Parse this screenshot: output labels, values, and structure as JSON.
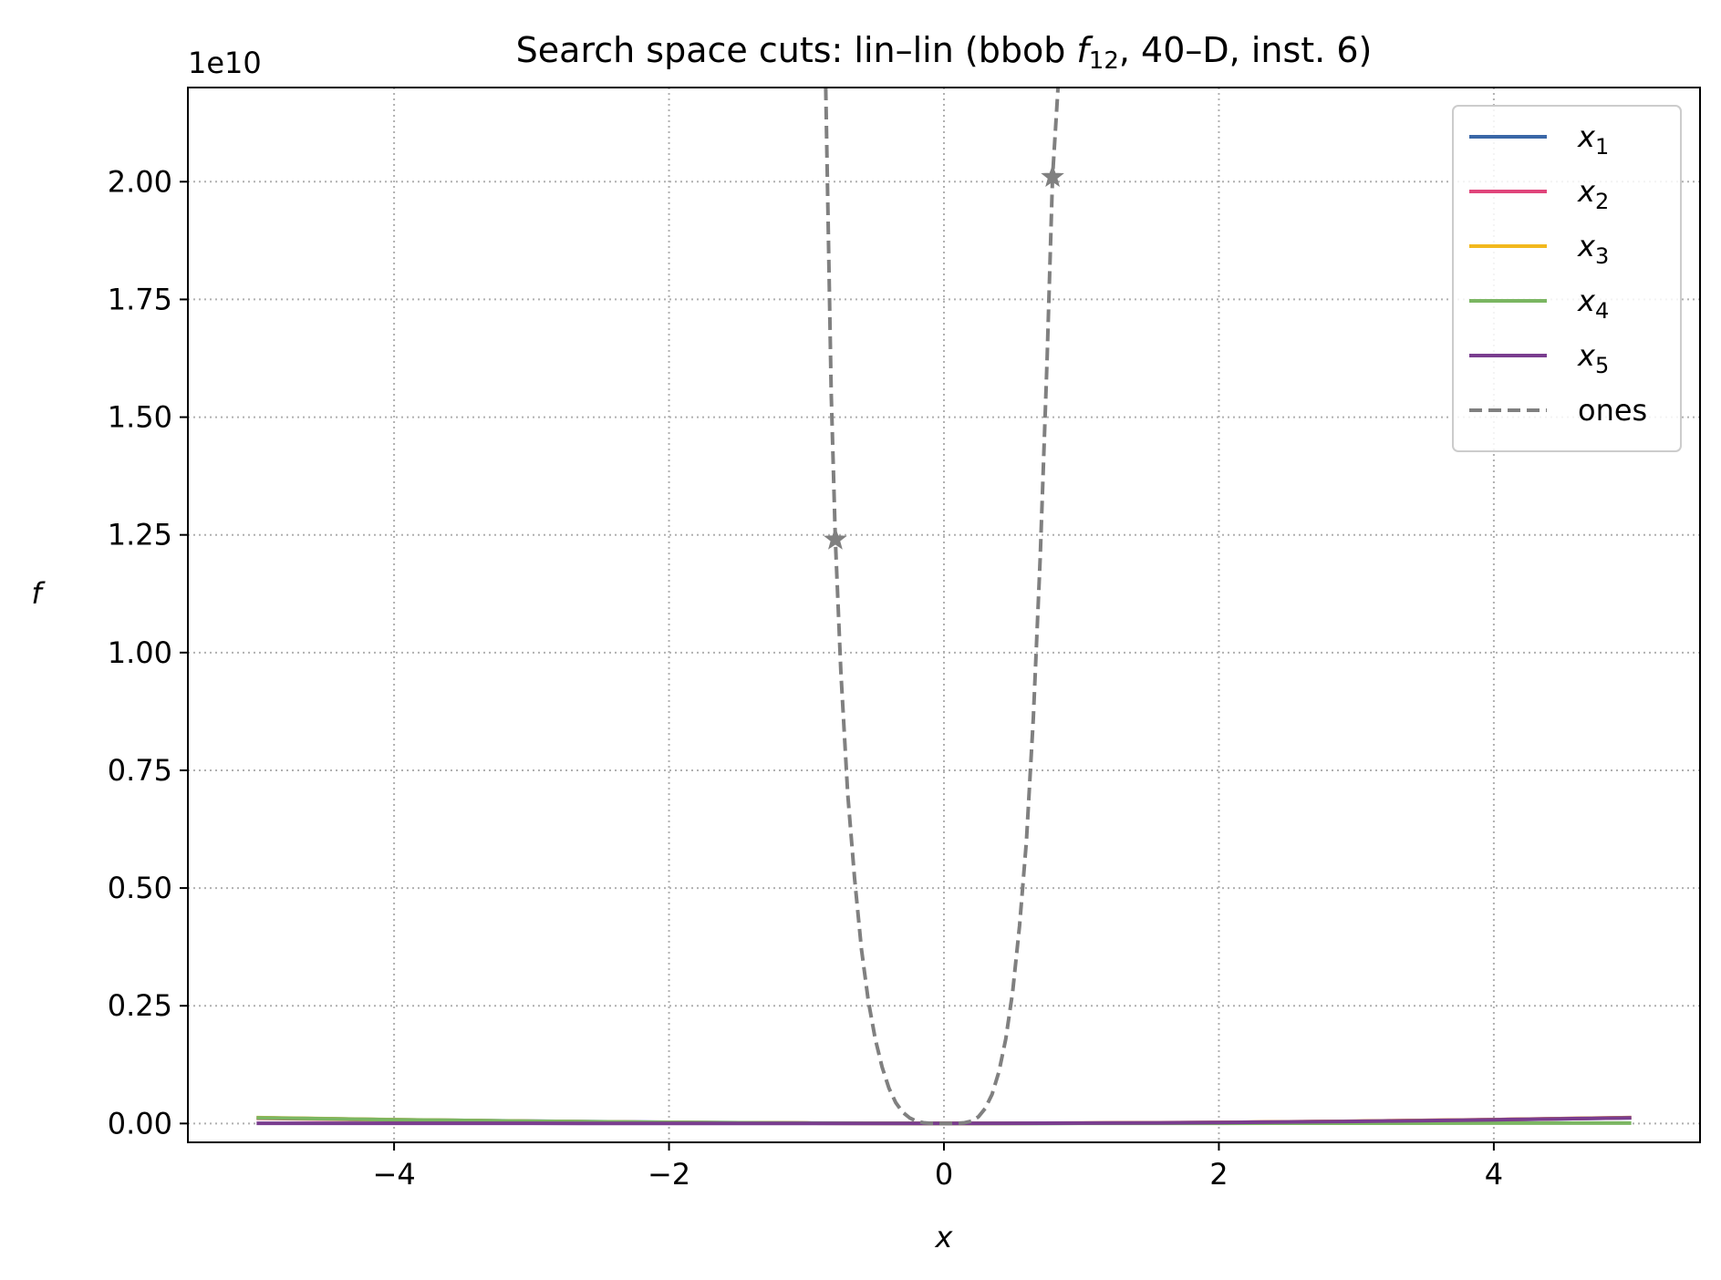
{
  "chart_data": {
    "type": "line",
    "title_parts": {
      "prefix": "Search space cuts: lin–lin (bbob ",
      "func": "f",
      "func_sub": "12",
      "suffix": ", 40–D, inst. 6)"
    },
    "xlabel": "x",
    "ylabel": "f",
    "y_offset_label": "1e10",
    "y_scale": 10000000000,
    "xlim": [
      -5.5,
      5.5
    ],
    "ylim": [
      -0.04,
      2.2
    ],
    "xticks": [
      -4,
      -2,
      0,
      2,
      4
    ],
    "xtick_labels": [
      "−4",
      "−2",
      "0",
      "2",
      "4"
    ],
    "yticks": [
      0.0,
      0.25,
      0.5,
      0.75,
      1.0,
      1.25,
      1.5,
      1.75,
      2.0
    ],
    "ytick_labels": [
      "0.00",
      "0.25",
      "0.50",
      "0.75",
      "1.00",
      "1.25",
      "1.50",
      "1.75",
      "2.00"
    ],
    "grid": true,
    "legend_position": "top-right",
    "series": [
      {
        "name": "x",
        "name_sub": "1",
        "color": "#3a67a7",
        "style": "solid",
        "x": [
          -5,
          -4,
          -3,
          -2,
          -1,
          0,
          1,
          2,
          3,
          4,
          5
        ],
        "y": [
          0.012,
          0.008,
          0.005,
          0.0025,
          0.001,
          0.0003,
          0.0006,
          0.002,
          0.0045,
          0.008,
          0.012
        ]
      },
      {
        "name": "x",
        "name_sub": "2",
        "color": "#e0457b",
        "style": "solid",
        "x": [
          -5,
          -4,
          -3,
          -2,
          -1,
          0,
          1,
          2,
          3,
          4,
          5
        ],
        "y": [
          0.011,
          0.0075,
          0.0045,
          0.0022,
          0.0008,
          0.0002,
          0.0007,
          0.0022,
          0.0048,
          0.0082,
          0.0125
        ]
      },
      {
        "name": "x",
        "name_sub": "3",
        "color": "#f2b81d",
        "style": "solid",
        "x": [
          -5,
          -4,
          -3,
          -2,
          -1,
          0,
          1,
          2,
          3,
          4,
          5
        ],
        "y": [
          0.0125,
          0.0082,
          0.0048,
          0.0022,
          0.0008,
          0.0002,
          0.0008,
          0.0022,
          0.0048,
          0.0082,
          0.0125
        ]
      },
      {
        "name": "x",
        "name_sub": "4",
        "color": "#7bb662",
        "style": "solid",
        "x": [
          -5,
          -4,
          -3,
          -2,
          -1,
          0,
          1,
          2,
          3,
          4,
          5
        ],
        "y": [
          0.012,
          0.008,
          0.0048,
          0.0024,
          0.0008,
          0.0002,
          0.0003,
          0.0005,
          0.0007,
          0.0008,
          0.001
        ]
      },
      {
        "name": "x",
        "name_sub": "5",
        "color": "#7a3d8f",
        "style": "solid",
        "x": [
          -5,
          -4,
          -3,
          -2,
          -1,
          0,
          1,
          2,
          3,
          4,
          5
        ],
        "y": [
          0.0005,
          0.0004,
          0.0003,
          0.0002,
          0.0001,
          0.0002,
          0.0008,
          0.002,
          0.0045,
          0.008,
          0.012
        ]
      },
      {
        "name": "ones",
        "name_sub": "",
        "color": "#808080",
        "style": "dashed",
        "x": [
          -0.86,
          -0.82,
          -0.79,
          -0.75,
          -0.7,
          -0.65,
          -0.6,
          -0.55,
          -0.5,
          -0.45,
          -0.4,
          -0.35,
          -0.3,
          -0.25,
          -0.2,
          -0.15,
          -0.1,
          -0.05,
          0,
          0.05,
          0.1,
          0.15,
          0.2,
          0.25,
          0.3,
          0.35,
          0.4,
          0.45,
          0.5,
          0.55,
          0.6,
          0.65,
          0.7,
          0.75,
          0.79,
          0.83
        ],
        "y": [
          2.2,
          1.55,
          1.24,
          0.96,
          0.7,
          0.52,
          0.37,
          0.26,
          0.18,
          0.12,
          0.075,
          0.044,
          0.024,
          0.012,
          0.005,
          0.0017,
          0.0004,
          0.0,
          0.0,
          0.0,
          0.0004,
          0.0017,
          0.005,
          0.014,
          0.032,
          0.062,
          0.11,
          0.18,
          0.28,
          0.42,
          0.6,
          0.86,
          1.2,
          1.62,
          2.01,
          2.2
        ]
      }
    ],
    "markers": [
      {
        "x": -0.79,
        "y": 1.24,
        "color": "#808080",
        "symbol": "star"
      },
      {
        "x": 0.79,
        "y": 2.01,
        "color": "#808080",
        "symbol": "star"
      }
    ]
  }
}
